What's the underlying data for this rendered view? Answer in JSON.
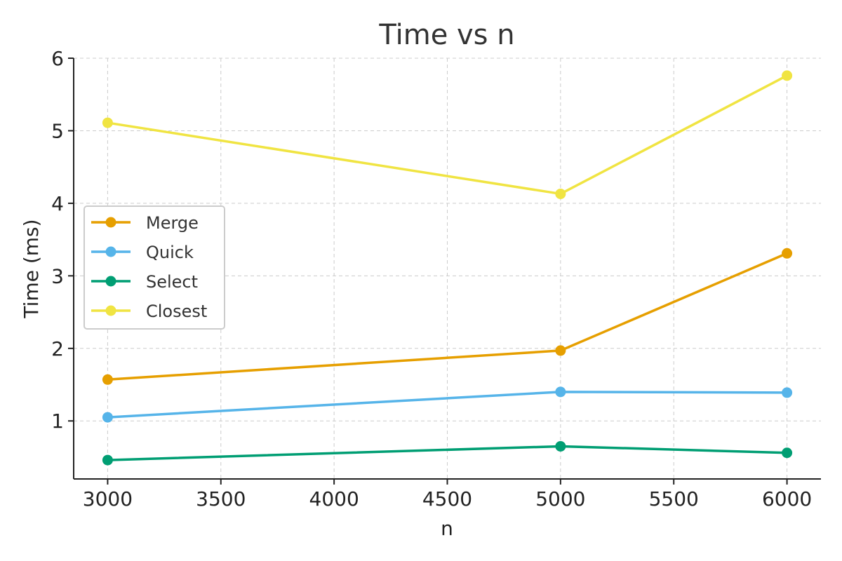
{
  "chart_data": {
    "type": "line",
    "title": "Time vs n",
    "xlabel": "n",
    "ylabel": "Time (ms)",
    "x": [
      3000,
      5000,
      6000
    ],
    "xlim": [
      2850,
      6150
    ],
    "ylim": [
      0.2,
      6.0
    ],
    "xticks": [
      3000,
      3500,
      4000,
      4500,
      5000,
      5500,
      6000
    ],
    "yticks": [
      1,
      2,
      3,
      4,
      5,
      6
    ],
    "grid": true,
    "legend_position": "center-left",
    "series": [
      {
        "name": "Merge",
        "color": "#E69F00",
        "values": [
          1.57,
          1.97,
          3.31
        ]
      },
      {
        "name": "Quick",
        "color": "#56B4E9",
        "values": [
          1.05,
          1.4,
          1.39
        ]
      },
      {
        "name": "Select",
        "color": "#009E73",
        "values": [
          0.46,
          0.65,
          0.56
        ]
      },
      {
        "name": "Closest",
        "color": "#F0E442",
        "values": [
          5.11,
          4.13,
          5.76
        ]
      }
    ]
  }
}
